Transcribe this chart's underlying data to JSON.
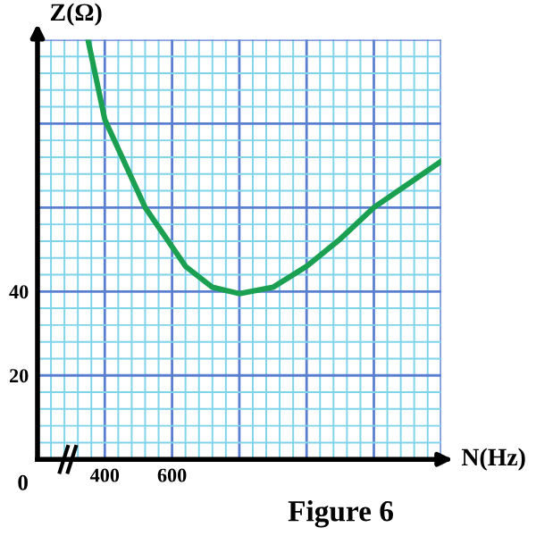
{
  "chart_data": {
    "type": "line",
    "xlabel": "N(Hz)",
    "ylabel": "Z(Ω)",
    "x": [
      350,
      400,
      520,
      640,
      720,
      800,
      900,
      1000,
      1100,
      1200,
      1400
    ],
    "series": [
      {
        "color": "#1aa050",
        "values": [
          100,
          81,
          60,
          46,
          41,
          39.5,
          41,
          46,
          52.5,
          60,
          71
        ]
      }
    ],
    "xlim": [
      200,
      1400
    ],
    "ylim": [
      0,
      100
    ],
    "xticks": [
      {
        "value": 240,
        "label": null
      },
      {
        "value": 280,
        "label": null
      },
      {
        "value": 320,
        "label": null
      },
      {
        "value": 360,
        "label": null
      },
      400,
      {
        "value": 440,
        "label": null
      },
      {
        "value": 480,
        "label": null
      },
      {
        "value": 520,
        "label": null
      },
      {
        "value": 560,
        "label": null
      },
      600,
      {
        "value": 640,
        "label": null
      },
      {
        "value": 680,
        "label": null
      },
      {
        "value": 720,
        "label": null
      },
      {
        "value": 760,
        "label": null
      },
      {
        "value": 800,
        "label": null
      },
      {
        "value": 840,
        "label": null
      },
      {
        "value": 880,
        "label": null
      },
      {
        "value": 920,
        "label": null
      },
      {
        "value": 960,
        "label": null
      },
      {
        "value": 1000,
        "label": null
      },
      {
        "value": 1040,
        "label": null
      },
      {
        "value": 1080,
        "label": null
      },
      {
        "value": 1120,
        "label": null
      },
      {
        "value": 1160,
        "label": null
      },
      {
        "value": 1200,
        "label": null
      },
      {
        "value": 1240,
        "label": null
      },
      {
        "value": 1280,
        "label": null
      },
      {
        "value": 1320,
        "label": null
      },
      {
        "value": 1360,
        "label": null
      },
      {
        "value": 1400,
        "label": null
      }
    ],
    "yticks": [
      {
        "value": 4,
        "label": null
      },
      {
        "value": 8,
        "label": null
      },
      {
        "value": 12,
        "label": null
      },
      {
        "value": 16,
        "label": null
      },
      20,
      {
        "value": 24,
        "label": null
      },
      {
        "value": 28,
        "label": null
      },
      {
        "value": 32,
        "label": null
      },
      {
        "value": 36,
        "label": null
      },
      40,
      {
        "value": 44,
        "label": null
      },
      {
        "value": 48,
        "label": null
      },
      {
        "value": 52,
        "label": null
      },
      {
        "value": 56,
        "label": null
      },
      {
        "value": 60,
        "label": null
      },
      {
        "value": 64,
        "label": null
      },
      {
        "value": 68,
        "label": null
      },
      {
        "value": 72,
        "label": null
      },
      {
        "value": 76,
        "label": null
      },
      {
        "value": 80,
        "label": null
      },
      {
        "value": 84,
        "label": null
      },
      {
        "value": 88,
        "label": null
      },
      {
        "value": 92,
        "label": null
      },
      {
        "value": 96,
        "label": null
      },
      {
        "value": 100,
        "label": null
      }
    ],
    "grid": true,
    "marker": "none",
    "line_style": "solid",
    "annotations": [
      "0",
      "Figure 6"
    ]
  }
}
